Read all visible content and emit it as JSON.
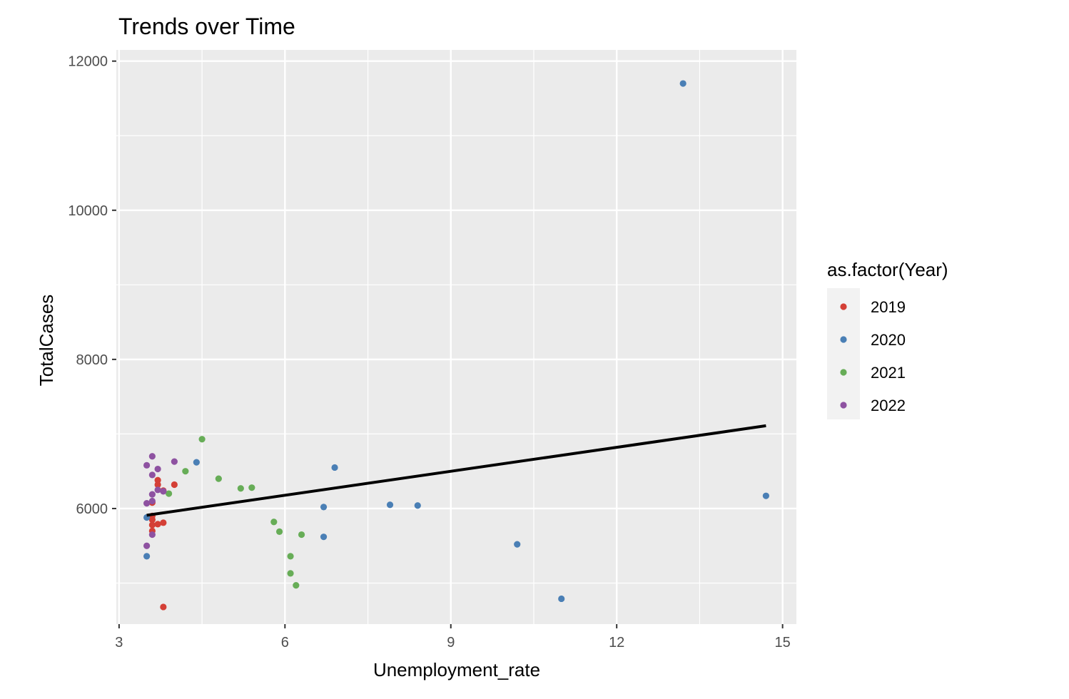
{
  "chart_data": {
    "type": "scatter",
    "title": "Trends over Time",
    "xlabel": "Unemployment_rate",
    "ylabel": "TotalCases",
    "xlim": [
      2.95,
      15.25
    ],
    "ylim": [
      4450,
      12150
    ],
    "x_ticks": [
      3,
      6,
      9,
      12,
      15
    ],
    "x_tick_labels": [
      "3",
      "6",
      "9",
      "12",
      "15"
    ],
    "x_minor": [
      4.5,
      7.5,
      10.5,
      13.5
    ],
    "y_ticks": [
      6000,
      8000,
      10000,
      12000
    ],
    "y_tick_labels": [
      "6000",
      "8000",
      "10000",
      "12000"
    ],
    "y_minor": [
      5000,
      7000,
      9000,
      11000
    ],
    "grid": true,
    "legend": {
      "title": "as.factor(Year)",
      "placement": "right",
      "entries": [
        "2019",
        "2020",
        "2021",
        "2022"
      ]
    },
    "series": [
      {
        "name": "2019",
        "color": "#d43f36",
        "points": [
          [
            3.6,
            5850
          ],
          [
            3.6,
            5780
          ],
          [
            3.6,
            5700
          ],
          [
            3.6,
            6080
          ],
          [
            3.6,
            5900
          ],
          [
            3.7,
            6380
          ],
          [
            3.7,
            6320
          ],
          [
            3.7,
            5790
          ],
          [
            3.8,
            5810
          ],
          [
            3.8,
            6240
          ],
          [
            4.0,
            6320
          ],
          [
            3.8,
            4680
          ]
        ]
      },
      {
        "name": "2020",
        "color": "#4a7fb5",
        "points": [
          [
            3.5,
            5880
          ],
          [
            3.5,
            5360
          ],
          [
            4.4,
            6620
          ],
          [
            6.7,
            6020
          ],
          [
            6.7,
            5620
          ],
          [
            6.9,
            6550
          ],
          [
            7.9,
            6050
          ],
          [
            8.4,
            6040
          ],
          [
            10.2,
            5520
          ],
          [
            11.0,
            4790
          ],
          [
            13.2,
            11700
          ],
          [
            14.7,
            6170
          ]
        ]
      },
      {
        "name": "2021",
        "color": "#67ad57",
        "points": [
          [
            3.9,
            6200
          ],
          [
            4.2,
            6500
          ],
          [
            4.5,
            6930
          ],
          [
            4.8,
            6400
          ],
          [
            5.2,
            6270
          ],
          [
            5.4,
            6280
          ],
          [
            5.8,
            5820
          ],
          [
            5.9,
            5690
          ],
          [
            6.1,
            5360
          ],
          [
            6.1,
            5130
          ],
          [
            6.2,
            4970
          ],
          [
            6.3,
            5650
          ]
        ]
      },
      {
        "name": "2022",
        "color": "#8e52a1",
        "points": [
          [
            3.5,
            6580
          ],
          [
            3.5,
            6070
          ],
          [
            3.5,
            5500
          ],
          [
            3.6,
            6700
          ],
          [
            3.6,
            6450
          ],
          [
            3.6,
            6190
          ],
          [
            3.6,
            6100
          ],
          [
            3.6,
            5650
          ],
          [
            3.7,
            6530
          ],
          [
            3.7,
            6250
          ],
          [
            3.8,
            6230
          ],
          [
            4.0,
            6630
          ]
        ]
      }
    ],
    "trend_line": {
      "color": "#000000",
      "x": [
        3.5,
        14.7
      ],
      "y": [
        5910,
        7110
      ]
    }
  }
}
